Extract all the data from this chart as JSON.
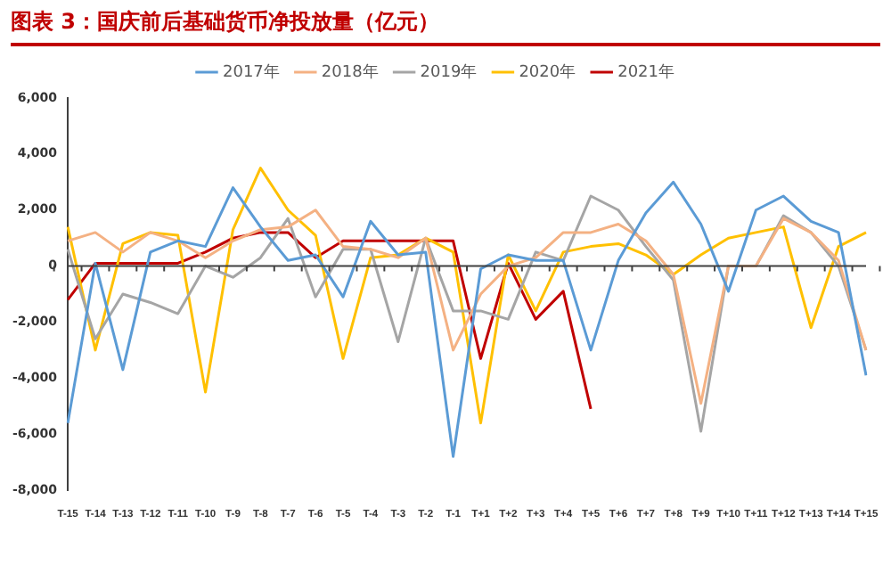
{
  "chart_data": {
    "type": "line",
    "title": "图表 3：国庆前后基础货币净投放量（亿元）",
    "categories": [
      "T-15",
      "T-14",
      "T-13",
      "T-12",
      "T-11",
      "T-10",
      "T-9",
      "T-8",
      "T-7",
      "T-6",
      "T-5",
      "T-4",
      "T-3",
      "T-2",
      "T-1",
      "T+1",
      "T+2",
      "T+3",
      "T+4",
      "T+5",
      "T+6",
      "T+7",
      "T+8",
      "T+9",
      "T+10",
      "T+11",
      "T+12",
      "T+13",
      "T+14",
      "T+15"
    ],
    "series": [
      {
        "name": "2017年",
        "color": "#5b9bd5",
        "values": [
          -5600,
          100,
          -3700,
          500,
          900,
          700,
          2800,
          1400,
          200,
          400,
          -1100,
          1600,
          400,
          500,
          -6800,
          -100,
          400,
          200,
          200,
          -3000,
          200,
          1900,
          3000,
          1500,
          -900,
          2000,
          2500,
          1600,
          1200,
          -3900
        ]
      },
      {
        "name": "2018年",
        "color": "#f4b183",
        "values": [
          900,
          1200,
          500,
          1200,
          900,
          300,
          900,
          1300,
          1400,
          2000,
          700,
          600,
          300,
          1000,
          -3000,
          -1000,
          0,
          300,
          1200,
          1200,
          1500,
          900,
          -300,
          -4900,
          0,
          0,
          1700,
          1200,
          200,
          -3000
        ]
      },
      {
        "name": "2019年",
        "color": "#a5a5a5",
        "values": [
          600,
          -2600,
          -1000,
          -1300,
          -1700,
          0,
          -400,
          300,
          1700,
          -1100,
          600,
          600,
          -2700,
          1000,
          -1600,
          -1600,
          -1900,
          500,
          200,
          2500,
          2000,
          700,
          -500,
          -5900,
          0,
          0,
          1800,
          1200,
          0,
          -3000
        ]
      },
      {
        "name": "2020年",
        "color": "#ffc000",
        "values": [
          1400,
          -3000,
          800,
          1200,
          1100,
          -4500,
          1300,
          3500,
          2000,
          1100,
          -3300,
          300,
          400,
          1000,
          500,
          -5600,
          400,
          -1600,
          500,
          700,
          800,
          400,
          -300,
          400,
          1000,
          1200,
          1400,
          -2200,
          700,
          1200
        ]
      },
      {
        "name": "2021年",
        "color": "#c00000",
        "values": [
          -1200,
          100,
          100,
          100,
          100,
          500,
          1000,
          1200,
          1200,
          300,
          900,
          900,
          900,
          900,
          900,
          -3300,
          100,
          -1900,
          -900,
          -5100,
          null,
          null,
          null,
          null,
          null,
          null,
          null,
          null,
          null,
          null
        ]
      }
    ],
    "ylim": [
      -8000,
      6000
    ],
    "yticks": [
      {
        "value": -8000,
        "label": "-8,000"
      },
      {
        "value": -6000,
        "label": "-6,000"
      },
      {
        "value": -4000,
        "label": "-4,000"
      },
      {
        "value": -2000,
        "label": "-2,000"
      },
      {
        "value": 0,
        "label": "0"
      },
      {
        "value": 2000,
        "label": "2,000"
      },
      {
        "value": 4000,
        "label": "4,000"
      },
      {
        "value": 6000,
        "label": "6,000"
      }
    ],
    "ref_lines": [
      {
        "axis": "y",
        "value": 0,
        "color": "#404040"
      }
    ],
    "grid": false,
    "legend": "top",
    "marker": "none",
    "line_style": "solid"
  }
}
